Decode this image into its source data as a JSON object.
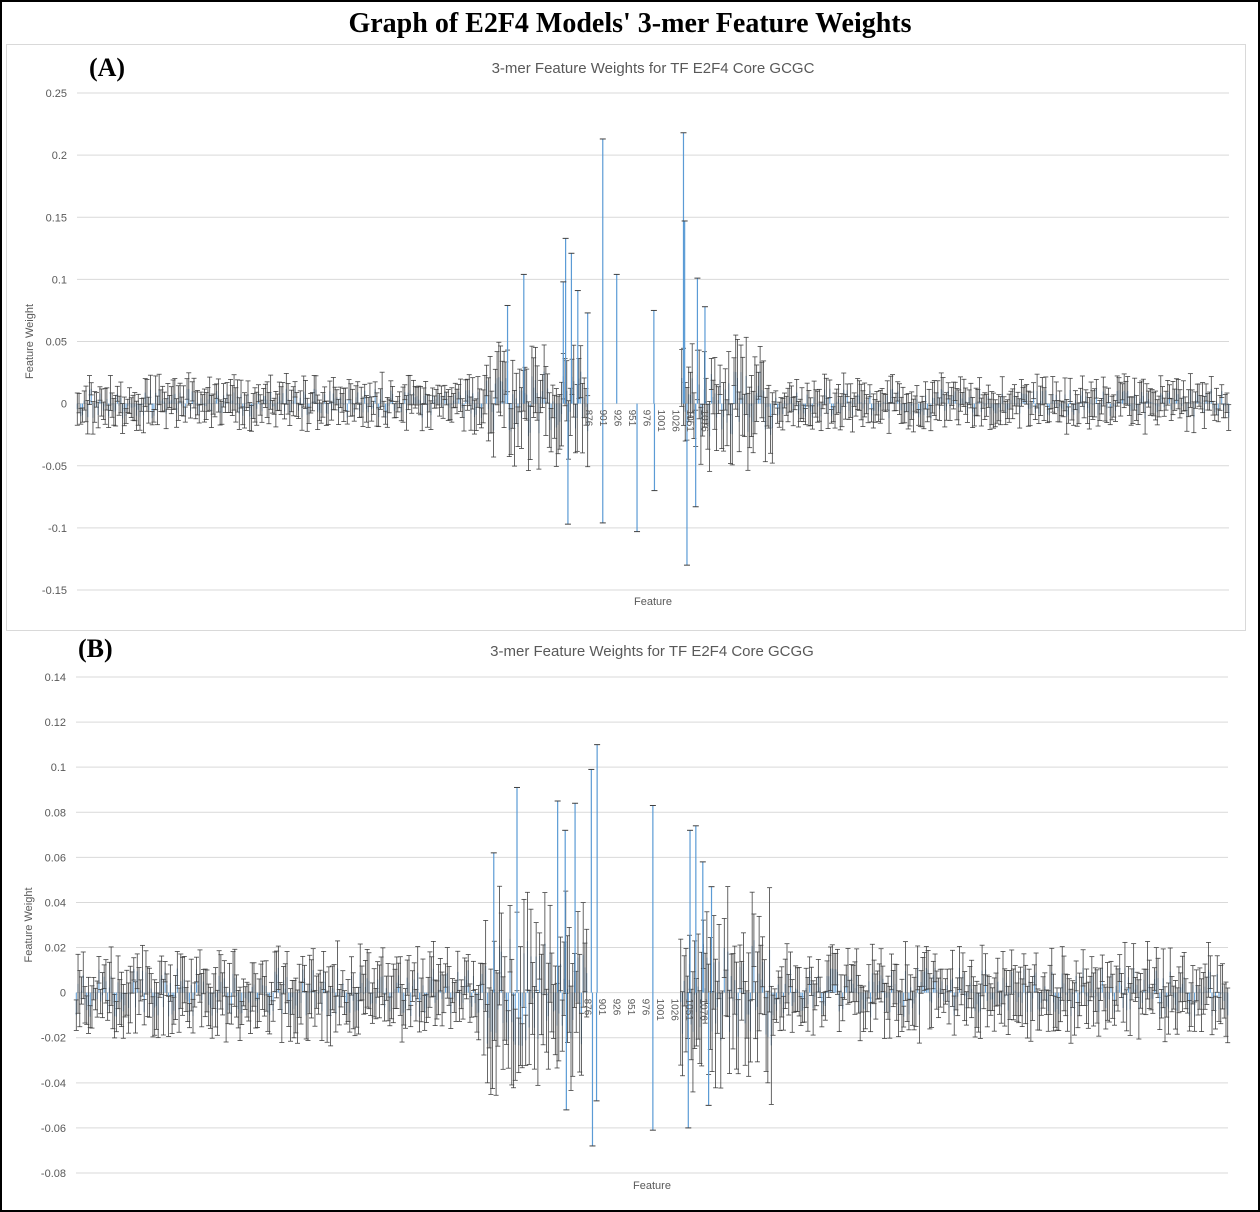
{
  "figure": {
    "title": "Graph of E2F4 Models' 3-mer Feature Weights"
  },
  "panels": [
    {
      "letter": "(A)"
    },
    {
      "letter": "(B)"
    }
  ],
  "colors": {
    "bar": "#5b9bd5",
    "errorbar": "#404040",
    "grid": "#d9d9d9",
    "axis_text": "#595959"
  },
  "chart_data": [
    {
      "type": "bar",
      "title": "3-mer Feature Weights for TF E2F4 Core GCGC",
      "xlabel": "Feature",
      "ylabel": "Feature Weight",
      "ylim": [
        -0.15,
        0.25
      ],
      "yticks": [
        -0.15,
        -0.1,
        -0.05,
        0,
        0.05,
        0.1,
        0.15,
        0.2,
        0.25
      ],
      "ytick_labels": [
        "-0.15",
        "-0.1",
        "-0.05",
        "0",
        "0.05",
        "0.1",
        "0.15",
        "0.2",
        "0.25"
      ],
      "grid": true,
      "error_bars": true,
      "x_count": 1984,
      "x_tick_labels": [
        "876",
        "901",
        "926",
        "951",
        "976",
        "1001",
        "1026",
        "1051",
        "1076"
      ],
      "x_tick_positions": [
        876,
        901,
        926,
        951,
        976,
        1001,
        1026,
        1051,
        1076
      ],
      "highlight_points": [
        {
          "x": 842,
          "value": 0.133,
          "err": 0.0
        },
        {
          "x": 838,
          "value": 0.098,
          "err": 0.0
        },
        {
          "x": 852,
          "value": 0.121,
          "err": 0.0
        },
        {
          "x": 906,
          "value": 0.213,
          "err": 0.0
        },
        {
          "x": 930,
          "value": 0.104,
          "err": 0.0
        },
        {
          "x": 1045,
          "value": 0.218,
          "err": 0.0
        },
        {
          "x": 1047,
          "value": 0.147,
          "err": 0.0
        },
        {
          "x": 1069,
          "value": 0.101,
          "err": 0.0
        },
        {
          "x": 770,
          "value": 0.104,
          "err": 0.0
        },
        {
          "x": 742,
          "value": 0.079,
          "err": 0.0
        },
        {
          "x": 863,
          "value": 0.091,
          "err": 0.0
        },
        {
          "x": 880,
          "value": 0.073,
          "err": 0.0
        },
        {
          "x": 994,
          "value": 0.075,
          "err": 0.0
        },
        {
          "x": 1082,
          "value": 0.078,
          "err": 0.0
        },
        {
          "x": 906,
          "value": -0.096,
          "err": 0.0
        },
        {
          "x": 965,
          "value": -0.103,
          "err": 0.0
        },
        {
          "x": 1051,
          "value": -0.13,
          "err": 0.0
        },
        {
          "x": 995,
          "value": -0.07,
          "err": 0.0
        },
        {
          "x": 846,
          "value": -0.097,
          "err": 0.0
        },
        {
          "x": 1066,
          "value": -0.083,
          "err": 0.0
        }
      ]
    },
    {
      "type": "bar",
      "title": "3-mer Feature Weights for TF E2F4 Core GCGG",
      "xlabel": "Feature",
      "ylabel": "Feature  Weight",
      "ylim": [
        -0.08,
        0.14
      ],
      "yticks": [
        -0.08,
        -0.06,
        -0.04,
        -0.02,
        0,
        0.02,
        0.04,
        0.06,
        0.08,
        0.1,
        0.12,
        0.14
      ],
      "ytick_labels": [
        "-0.08",
        "-0.06",
        "-0.04",
        "-0.02",
        "0",
        "0.02",
        "0.04",
        "0.06",
        "0.08",
        "0.1",
        "0.12",
        "0.14"
      ],
      "grid": true,
      "error_bars": true,
      "x_count": 1984,
      "x_tick_labels": [
        "876",
        "901",
        "926",
        "951",
        "976",
        "1001",
        "1026",
        "1051",
        "1076"
      ],
      "x_tick_positions": [
        876,
        901,
        926,
        951,
        976,
        1001,
        1026,
        1051,
        1076
      ],
      "highlight_points": [
        {
          "x": 898,
          "value": 0.11,
          "err": 0.0
        },
        {
          "x": 888,
          "value": 0.099,
          "err": 0.0
        },
        {
          "x": 994,
          "value": 0.083,
          "err": 0.0
        },
        {
          "x": 760,
          "value": 0.091,
          "err": 0.0
        },
        {
          "x": 830,
          "value": 0.085,
          "err": 0.0
        },
        {
          "x": 860,
          "value": 0.084,
          "err": 0.0
        },
        {
          "x": 843,
          "value": 0.072,
          "err": 0.0
        },
        {
          "x": 1068,
          "value": 0.074,
          "err": 0.0
        },
        {
          "x": 1058,
          "value": 0.072,
          "err": 0.0
        },
        {
          "x": 1080,
          "value": 0.058,
          "err": 0.0
        },
        {
          "x": 720,
          "value": 0.062,
          "err": 0.0
        },
        {
          "x": 1095,
          "value": 0.047,
          "err": 0.0
        },
        {
          "x": 890,
          "value": -0.068,
          "err": 0.0
        },
        {
          "x": 994,
          "value": -0.061,
          "err": 0.0
        },
        {
          "x": 845,
          "value": -0.052,
          "err": 0.0
        },
        {
          "x": 1055,
          "value": -0.06,
          "err": 0.0
        },
        {
          "x": 1090,
          "value": -0.05,
          "err": 0.0
        },
        {
          "x": 897,
          "value": -0.048,
          "err": 0.0
        }
      ]
    }
  ]
}
